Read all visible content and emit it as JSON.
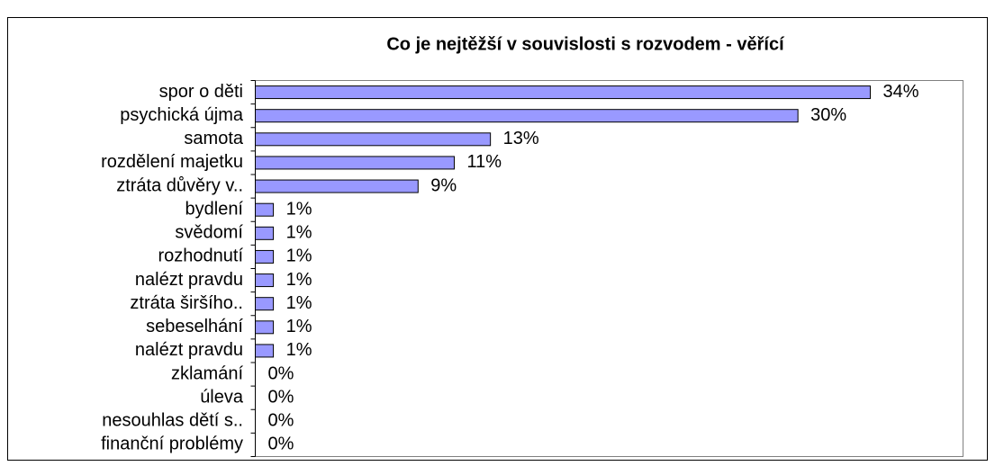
{
  "chart_data": {
    "type": "hbar",
    "title": "Co je nejtěžší v souvislosti s rozvodem - věřící",
    "categories": [
      "spor o děti",
      "psychická újma",
      "samota",
      "rozdělení majetku",
      "ztráta důvěry v..",
      "bydlení",
      "svědomí",
      "rozhodnutí",
      "nalézt pravdu",
      "ztráta širšího..",
      "sebeselhání",
      "nalézt pravdu",
      "zklamání",
      "úleva",
      "nesouhlas dětí s..",
      "finanční problémy"
    ],
    "values": [
      34,
      30,
      13,
      11,
      9,
      1,
      1,
      1,
      1,
      1,
      1,
      1,
      0,
      0,
      0,
      0
    ],
    "value_labels": [
      "34%",
      "30%",
      "13%",
      "11%",
      "9%",
      "1%",
      "1%",
      "1%",
      "1%",
      "1%",
      "1%",
      "1%",
      "0%",
      "0%",
      "0%",
      "0%"
    ],
    "color": "#9999ff"
  }
}
